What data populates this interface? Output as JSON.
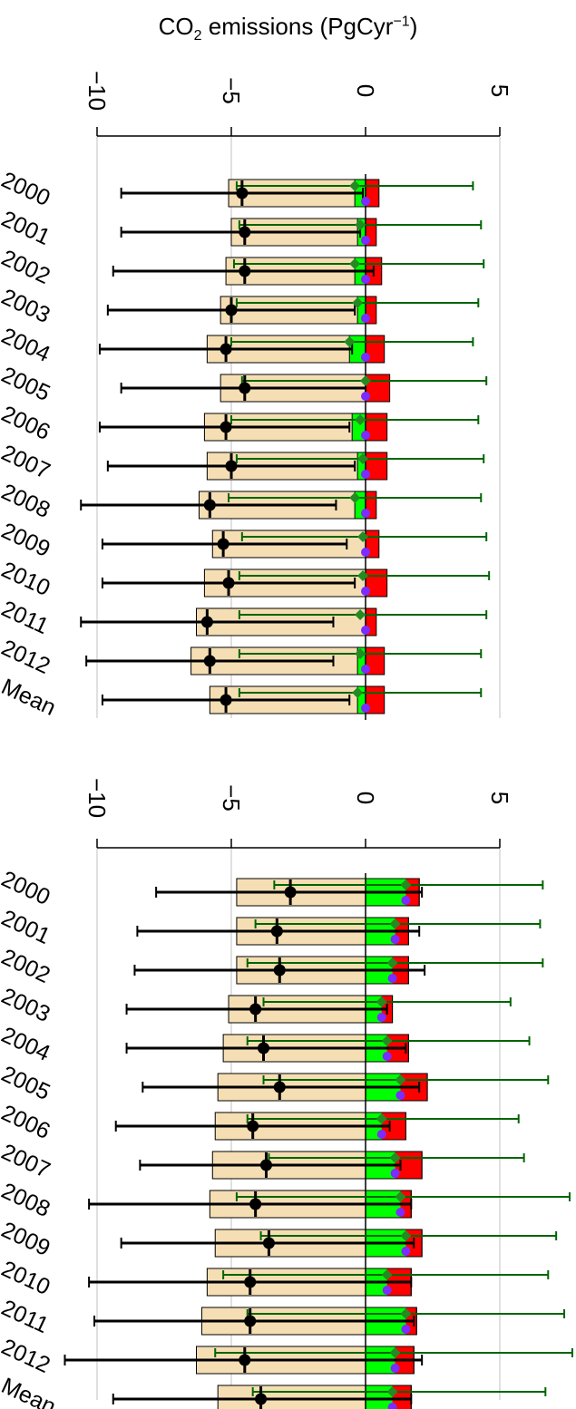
{
  "title": {
    "prefix": "CO",
    "sub": "2",
    "middle": " emissions (PgCyr",
    "sup": "−1",
    "suffix": ")"
  },
  "colors": {
    "tan": "#f5deb3",
    "green_bar": "#00ff00",
    "red_bar": "#ff0000",
    "whisker_green": "#006400",
    "point_green": "#228b22",
    "point_purple": "#7b2cff",
    "grid": "#cccccc"
  },
  "chart_data": [
    {
      "type": "bar",
      "orientation": "horizontal",
      "categories": [
        "2000",
        "2001",
        "2002",
        "2003",
        "2004",
        "2005",
        "2006",
        "2007",
        "2008",
        "2009",
        "2010",
        "2011",
        "2012",
        "Mean"
      ],
      "axis_ticks": [
        "5",
        "0",
        "−5",
        "−10"
      ],
      "tick_values": [
        5,
        0,
        -5,
        -10
      ],
      "xlim": [
        -10.5,
        5.5
      ],
      "grid": true,
      "series": [
        {
          "role": "negative-bar",
          "values": [
            -5.1,
            -5.0,
            -5.2,
            -5.4,
            -5.9,
            -5.4,
            -6.0,
            -5.9,
            -6.2,
            -5.7,
            -6.0,
            -6.3,
            -6.5,
            -5.8
          ]
        },
        {
          "role": "green-bar",
          "values": [
            -0.4,
            -0.3,
            -0.4,
            -0.3,
            -0.6,
            0,
            -0.5,
            -0.3,
            -0.4,
            0,
            0,
            0,
            -0.3,
            -0.3
          ]
        },
        {
          "role": "red-bar",
          "values": [
            0.5,
            0.4,
            0.6,
            0.4,
            0.7,
            0.9,
            0.8,
            0.8,
            0.4,
            0.5,
            0.8,
            0.4,
            0.7,
            0.7
          ]
        },
        {
          "role": "black-point",
          "values": [
            -4.6,
            -4.5,
            -4.5,
            -5.0,
            -5.2,
            -4.5,
            -5.2,
            -5.0,
            -5.8,
            -5.3,
            -5.1,
            -5.9,
            -5.8,
            -5.2
          ]
        },
        {
          "role": "black-error",
          "low": [
            -9.1,
            -9.1,
            -9.4,
            -9.6,
            -9.9,
            -9.1,
            -9.9,
            -9.6,
            -10.6,
            -9.8,
            -9.8,
            -10.6,
            -10.4,
            -9.8
          ],
          "high": [
            -0.1,
            -0.2,
            0.3,
            -0.4,
            -0.5,
            0,
            -0.6,
            -0.4,
            -1.1,
            -0.7,
            -0.4,
            -1.2,
            -1.2,
            -0.6
          ]
        },
        {
          "role": "green-point",
          "values": [
            -0.4,
            -0.2,
            -0.4,
            -0.3,
            -0.6,
            0,
            -0.2,
            -0.1,
            -0.4,
            -0.1,
            -0.1,
            -0.2,
            -0.2,
            -0.3
          ]
        },
        {
          "role": "green-error",
          "low": [
            -4.8,
            -4.7,
            -4.9,
            -4.8,
            -5.0,
            -4.6,
            -5.0,
            -4.8,
            -5.1,
            -4.6,
            -4.7,
            -4.7,
            -4.7,
            -4.7
          ],
          "high": [
            4.0,
            4.3,
            4.4,
            4.2,
            4.0,
            4.5,
            4.2,
            4.4,
            4.3,
            4.5,
            4.6,
            4.5,
            4.3,
            4.3
          ]
        },
        {
          "role": "purple-point",
          "values": [
            0,
            0,
            0,
            0,
            0,
            0,
            0,
            0,
            0,
            0,
            0,
            0,
            0,
            0
          ]
        }
      ]
    },
    {
      "type": "bar",
      "orientation": "horizontal",
      "categories": [
        "2000",
        "2001",
        "2002",
        "2003",
        "2004",
        "2005",
        "2006",
        "2007",
        "2008",
        "2009",
        "2010",
        "2011",
        "2012",
        "Mean"
      ],
      "axis_ticks": [
        "5",
        "0",
        "−5",
        "−10"
      ],
      "tick_values": [
        5,
        0,
        -5,
        -10
      ],
      "xlim": [
        -10.5,
        5.5
      ],
      "grid": true,
      "series": [
        {
          "role": "negative-bar",
          "values": [
            -4.8,
            -4.8,
            -4.8,
            -5.1,
            -5.3,
            -5.5,
            -5.6,
            -5.7,
            -5.8,
            -5.6,
            -5.9,
            -6.1,
            -6.3,
            -5.5
          ]
        },
        {
          "role": "green-bar",
          "values": [
            1.5,
            1.1,
            1.0,
            0.6,
            0.8,
            1.3,
            0.6,
            1.1,
            1.3,
            1.5,
            0.8,
            1.5,
            1.1,
            1.0
          ]
        },
        {
          "role": "red-bar",
          "values": [
            2.0,
            1.6,
            1.6,
            1.0,
            1.6,
            2.3,
            1.5,
            2.1,
            1.7,
            2.1,
            1.7,
            1.9,
            1.8,
            1.7
          ]
        },
        {
          "role": "black-point",
          "values": [
            -2.8,
            -3.3,
            -3.2,
            -4.1,
            -3.8,
            -3.2,
            -4.2,
            -3.7,
            -4.1,
            -3.6,
            -4.3,
            -4.3,
            -4.5,
            -3.9
          ]
        },
        {
          "role": "black-error",
          "low": [
            -7.8,
            -8.5,
            -8.6,
            -8.9,
            -8.9,
            -8.3,
            -9.3,
            -8.4,
            -10.3,
            -9.1,
            -10.3,
            -10.1,
            -11.2,
            -9.4
          ],
          "high": [
            2.1,
            2.0,
            2.2,
            0.8,
            1.5,
            2.0,
            0.9,
            1.3,
            1.7,
            1.8,
            1.7,
            1.8,
            2.1,
            1.7
          ]
        },
        {
          "role": "green-point",
          "values": [
            1.5,
            1.1,
            1.0,
            0.6,
            0.8,
            1.3,
            0.6,
            1.1,
            1.3,
            1.5,
            0.8,
            1.5,
            1.1,
            1.0
          ]
        },
        {
          "role": "green-error",
          "low": [
            -3.4,
            -4.1,
            -4.4,
            -3.8,
            -4.4,
            -3.8,
            -4.4,
            -3.6,
            -4.8,
            -3.9,
            -5.3,
            -4.4,
            -5.6,
            -4.2
          ],
          "high": [
            6.6,
            6.5,
            6.6,
            5.4,
            6.1,
            6.8,
            5.7,
            5.9,
            7.6,
            7.1,
            6.8,
            7.4,
            7.7,
            6.7
          ]
        },
        {
          "role": "purple-point",
          "values": [
            1.5,
            1.1,
            1.0,
            0.6,
            0.8,
            1.3,
            0.6,
            1.1,
            1.3,
            1.5,
            0.8,
            1.5,
            1.1,
            1.0
          ]
        }
      ]
    }
  ]
}
